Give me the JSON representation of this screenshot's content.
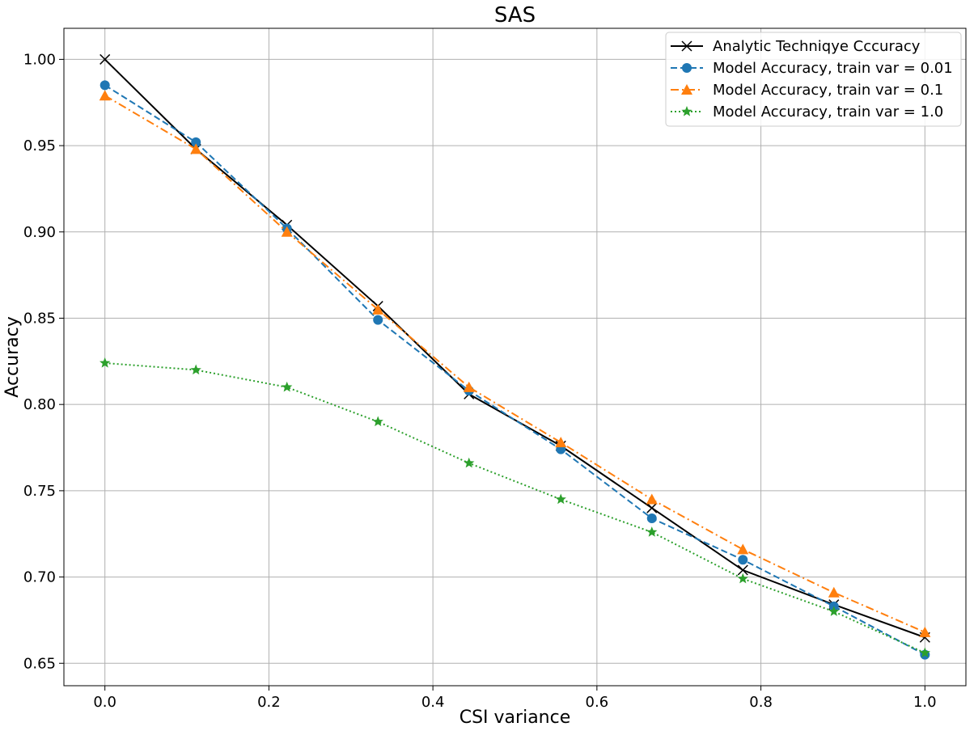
{
  "chart_data": {
    "type": "line",
    "title": "SAS",
    "xlabel": "CSI variance",
    "ylabel": "Accuracy",
    "xlim": [
      -0.05,
      1.05
    ],
    "ylim": [
      0.637,
      1.018
    ],
    "x_ticks": [
      0.0,
      0.2,
      0.4,
      0.6,
      0.8,
      1.0
    ],
    "x_tick_labels": [
      "0.0",
      "0.2",
      "0.4",
      "0.6",
      "0.8",
      "1.0"
    ],
    "y_ticks": [
      0.65,
      0.7,
      0.75,
      0.8,
      0.85,
      0.9,
      0.95,
      1.0
    ],
    "y_tick_labels": [
      "0.65",
      "0.70",
      "0.75",
      "0.80",
      "0.85",
      "0.90",
      "0.95",
      "1.00"
    ],
    "grid": true,
    "legend_position": "top-right",
    "x": [
      0.0,
      0.111,
      0.222,
      0.333,
      0.444,
      0.556,
      0.667,
      0.778,
      0.889,
      1.0
    ],
    "series": [
      {
        "name": "Analytic Techniqye Cccuracy",
        "color": "#000000",
        "line_style": "solid",
        "marker": "x",
        "values": [
          1.0,
          0.948,
          0.904,
          0.857,
          0.806,
          0.776,
          0.74,
          0.704,
          0.684,
          0.665
        ]
      },
      {
        "name": "Model Accuracy, train var = 0.01",
        "color": "#1f77b4",
        "line_style": "dashed",
        "marker": "circle",
        "values": [
          0.985,
          0.952,
          0.902,
          0.849,
          0.808,
          0.774,
          0.734,
          0.71,
          0.683,
          0.655
        ]
      },
      {
        "name": "Model Accuracy, train var = 0.1",
        "color": "#ff7f0e",
        "line_style": "dashdot",
        "marker": "triangle",
        "values": [
          0.979,
          0.948,
          0.9,
          0.855,
          0.81,
          0.778,
          0.745,
          0.716,
          0.691,
          0.668
        ]
      },
      {
        "name": "Model Accuracy, train var = 1.0",
        "color": "#2ca02c",
        "line_style": "dotted",
        "marker": "star",
        "values": [
          0.824,
          0.82,
          0.81,
          0.79,
          0.766,
          0.745,
          0.726,
          0.699,
          0.68,
          0.656
        ]
      }
    ]
  }
}
